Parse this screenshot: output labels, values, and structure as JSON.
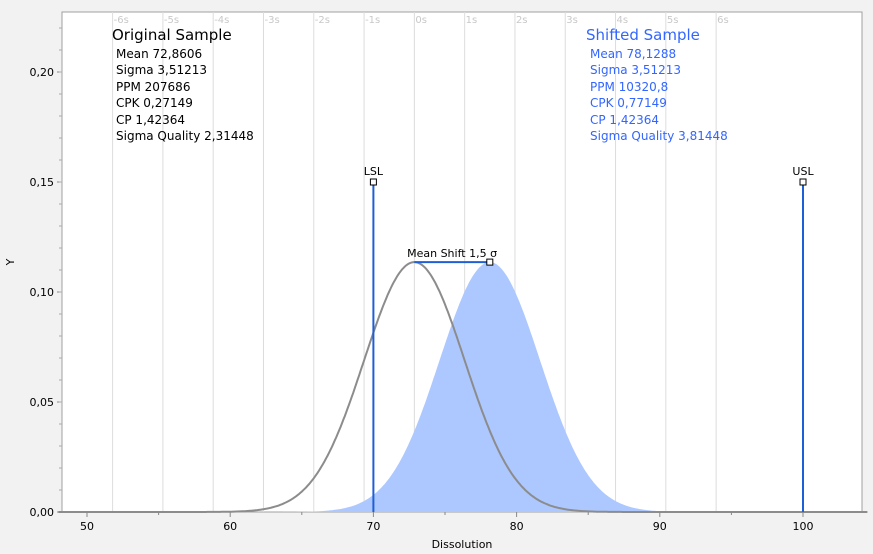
{
  "chart_data": {
    "type": "area",
    "xlabel": "Dissolution",
    "ylabel": "Y",
    "xlim": [
      48,
      104.5
    ],
    "ylim": [
      0,
      0.227
    ],
    "x_ticks": [
      50,
      60,
      70,
      80,
      90,
      100
    ],
    "x_tick_labels": [
      "50",
      "60",
      "70",
      "80",
      "90",
      "100"
    ],
    "y_ticks": [
      0,
      0.05,
      0.1,
      0.15,
      0.2
    ],
    "y_tick_labels": [
      "0,00",
      "0,05",
      "0,10",
      "0,15",
      "0,20"
    ],
    "sigma_labels": [
      "-6s",
      "-5s",
      "-4s",
      "-3s",
      "-2s",
      "-1s",
      "0s",
      "1s",
      "2s",
      "3s",
      "4s",
      "5s",
      "6s"
    ],
    "spec_limits": [
      {
        "name": "LSL",
        "value": 70
      },
      {
        "name": "USL",
        "value": 100
      }
    ],
    "spec_limit_height": 0.15,
    "mean_shift_label": "Mean Shift 1,5 σ",
    "series": [
      {
        "name": "Original Sample",
        "mean": 72.8606,
        "sigma": 3.51213,
        "style": "line",
        "color": "#8c8c8c"
      },
      {
        "name": "Shifted Sample",
        "mean": 78.1288,
        "sigma": 3.51213,
        "style": "fill",
        "color": "#adc8ff"
      }
    ],
    "colors": {
      "shifted_text": "#3366ff",
      "spec": "#1f5fd6"
    }
  },
  "original": {
    "title": "Original Sample",
    "lines": [
      "Mean 72,8606",
      "Sigma 3,51213",
      "PPM 207686",
      "CPK 0,27149",
      "CP 1,42364",
      "Sigma Quality 2,31448"
    ]
  },
  "shifted": {
    "title": "Shifted Sample",
    "lines": [
      "Mean 78,1288",
      "Sigma 3,51213",
      "PPM 10320,8",
      "CPK 0,77149",
      "CP 1,42364",
      "Sigma Quality 3,81448"
    ]
  }
}
